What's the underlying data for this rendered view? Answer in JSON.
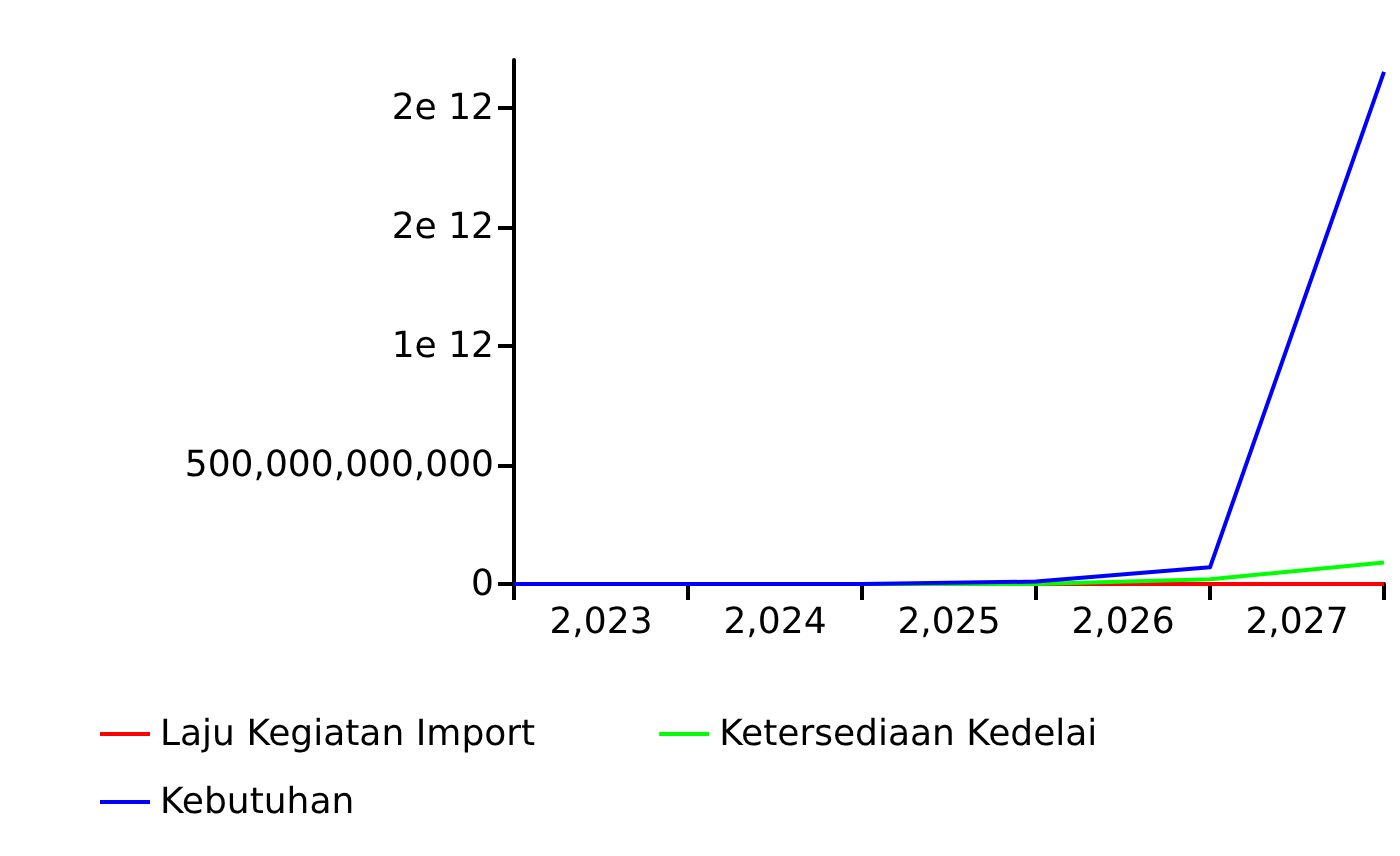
{
  "chart_data": {
    "type": "line",
    "x": [
      2022.5,
      2023.5,
      2024.5,
      2025.5,
      2026.5,
      2027.5
    ],
    "xlim": [
      2022.5,
      2027.5
    ],
    "xticks": [
      {
        "value": 2023,
        "label": "2,023"
      },
      {
        "value": 2024,
        "label": "2,024"
      },
      {
        "value": 2025,
        "label": "2,025"
      },
      {
        "value": 2026,
        "label": "2,026"
      },
      {
        "value": 2027,
        "label": "2,027"
      }
    ],
    "ylim": [
      0,
      2200000000000
    ],
    "yticks": [
      0,
      {
        "value": 500000000000,
        "label": "500,000,000,000"
      },
      {
        "value": 1000000000000,
        "label": "1e 12"
      },
      {
        "value": 1500000000000,
        "label": "2e 12"
      },
      {
        "value": 2000000000000,
        "label": "2e 12"
      }
    ],
    "series": [
      {
        "name": "Laju Kegiatan Import",
        "color": "#ff0000",
        "values": [
          null,
          null,
          0,
          0,
          0,
          0
        ]
      },
      {
        "name": "Ketersediaan Kedelai",
        "color": "#00ff00",
        "values": [
          0,
          0,
          0,
          0,
          20000000000,
          90000000000
        ]
      },
      {
        "name": "Kebutuhan",
        "color": "#0000ff",
        "values": [
          0,
          0,
          0,
          10000000000,
          70000000000,
          2150000000000
        ]
      }
    ],
    "marker": "none",
    "line_style": "solid",
    "grid": false,
    "legend": "bottom"
  }
}
